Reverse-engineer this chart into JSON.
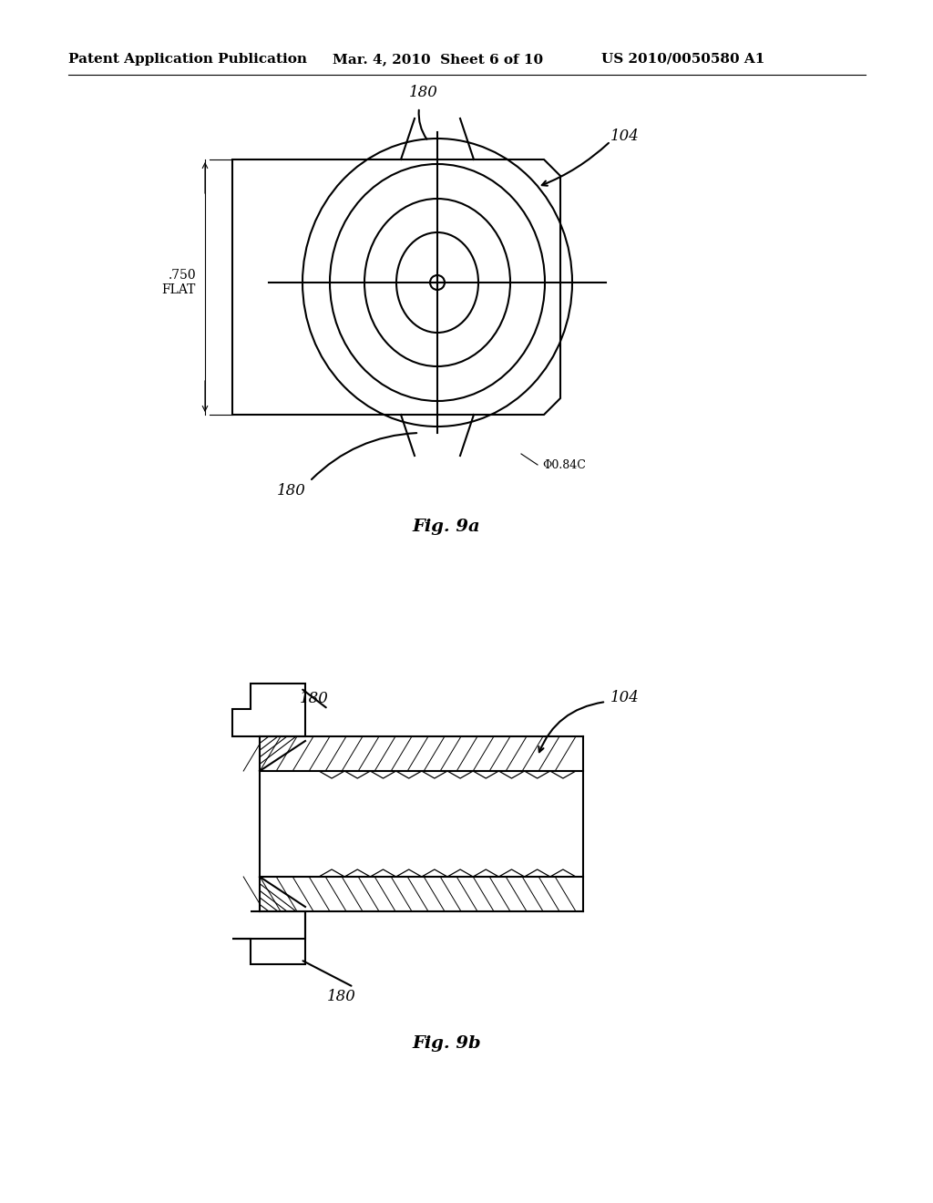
{
  "background_color": "#ffffff",
  "header_left": "Patent Application Publication",
  "header_mid": "Mar. 4, 2010  Sheet 6 of 10",
  "header_right": "US 2010/0050580 A1",
  "fig9a_label": "Fig. 9a",
  "fig9b_label": "Fig. 9b",
  "label_180": "180",
  "label_104": "104",
  "label_750": ".750\nFLAT",
  "label_phi": "Φ0.84C",
  "line_color": "#000000",
  "line_width": 1.5
}
